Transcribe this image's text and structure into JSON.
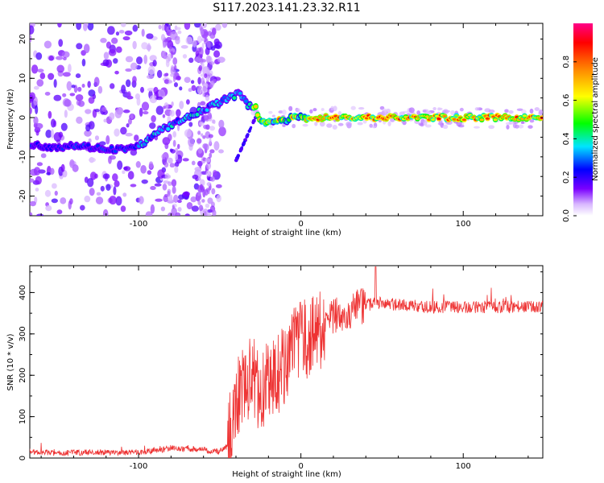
{
  "figure": {
    "title": "S117.2023.141.23.32.R11"
  },
  "chart_data": [
    {
      "type": "heatmap",
      "xlabel": "Height of straight line (km)",
      "ylabel": "Frequency (Hz)",
      "xlim": [
        -167,
        149
      ],
      "ylim": [
        -25,
        24
      ],
      "xticks": [
        -100,
        0,
        100
      ],
      "yticks": [
        -20,
        -10,
        0,
        10,
        20
      ],
      "colorbar": {
        "label": "Normalized spectral amplitude",
        "range": [
          0.0,
          1.0
        ],
        "ticks": [
          0.0,
          0.2,
          0.4,
          0.6,
          0.8
        ]
      },
      "ridge": [
        {
          "x": -167,
          "y": -7
        },
        {
          "x": -150,
          "y": -7.5
        },
        {
          "x": -140,
          "y": -7
        },
        {
          "x": -120,
          "y": -8
        },
        {
          "x": -105,
          "y": -8
        },
        {
          "x": -95,
          "y": -6
        },
        {
          "x": -85,
          "y": -3
        },
        {
          "x": -75,
          "y": -1
        },
        {
          "x": -65,
          "y": 1
        },
        {
          "x": -55,
          "y": 3
        },
        {
          "x": -45,
          "y": 5
        },
        {
          "x": -38,
          "y": 6
        },
        {
          "x": -32,
          "y": 3
        },
        {
          "x": -28,
          "y": 3
        },
        {
          "x": -25,
          "y": -1
        },
        {
          "x": -18,
          "y": -1
        },
        {
          "x": -10,
          "y": -1
        },
        {
          "x": -5,
          "y": 0
        },
        {
          "x": 0,
          "y": 0
        },
        {
          "x": 10,
          "y": 0
        },
        {
          "x": 50,
          "y": 0
        },
        {
          "x": 100,
          "y": 0
        },
        {
          "x": 149,
          "y": 0
        }
      ]
    },
    {
      "type": "line",
      "xlabel": "Height of straight line (km)",
      "ylabel": "SNR (10 * v/v)",
      "xlim": [
        -167,
        149
      ],
      "ylim": [
        0,
        465
      ],
      "xticks": [
        -100,
        0,
        100
      ],
      "yticks": [
        0,
        100,
        200,
        300,
        400
      ],
      "color": "#ee3333",
      "series": [
        {
          "envelope": [
            {
              "x": -167,
              "y": 15
            },
            {
              "x": -150,
              "y": 12
            },
            {
              "x": -130,
              "y": 14
            },
            {
              "x": -110,
              "y": 13
            },
            {
              "x": -90,
              "y": 16
            },
            {
              "x": -80,
              "y": 25
            },
            {
              "x": -70,
              "y": 22
            },
            {
              "x": -60,
              "y": 20
            },
            {
              "x": -50,
              "y": 15
            },
            {
              "x": -45,
              "y": 30
            },
            {
              "x": -40,
              "y": 150
            },
            {
              "x": -35,
              "y": 180
            },
            {
              "x": -30,
              "y": 200
            },
            {
              "x": -25,
              "y": 160
            },
            {
              "x": -20,
              "y": 190
            },
            {
              "x": -15,
              "y": 200
            },
            {
              "x": -10,
              "y": 230
            },
            {
              "x": -5,
              "y": 260
            },
            {
              "x": 0,
              "y": 280
            },
            {
              "x": 5,
              "y": 290
            },
            {
              "x": 10,
              "y": 300
            },
            {
              "x": 15,
              "y": 320
            },
            {
              "x": 20,
              "y": 340
            },
            {
              "x": 25,
              "y": 350
            },
            {
              "x": 30,
              "y": 355
            },
            {
              "x": 40,
              "y": 370
            },
            {
              "x": 50,
              "y": 375
            },
            {
              "x": 60,
              "y": 370
            },
            {
              "x": 80,
              "y": 365
            },
            {
              "x": 100,
              "y": 365
            },
            {
              "x": 120,
              "y": 365
            },
            {
              "x": 149,
              "y": 365
            }
          ],
          "peak": {
            "x": 46,
            "y": 462
          }
        }
      ]
    }
  ]
}
